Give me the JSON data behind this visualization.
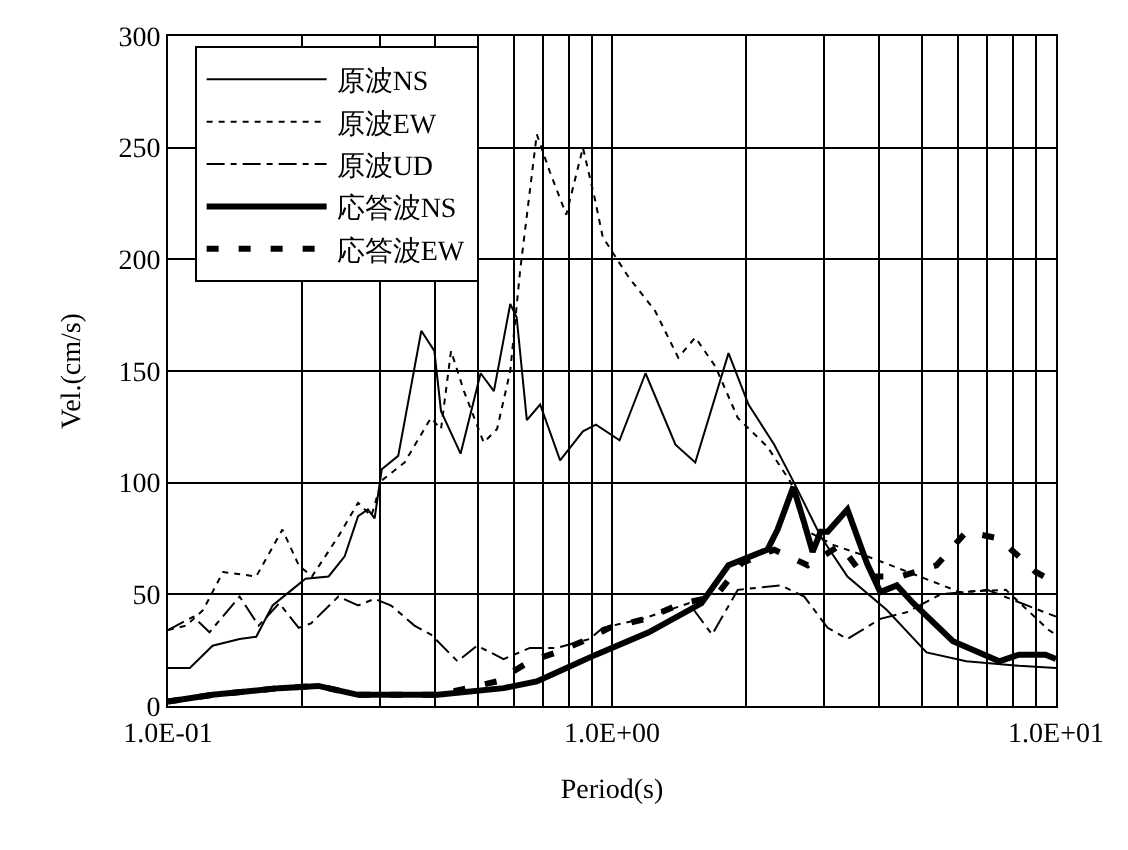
{
  "chart_data": {
    "type": "line",
    "xlabel": "Period(s)",
    "ylabel": "Vel.(cm/s)",
    "log": "x",
    "grid": true,
    "legend": "top left",
    "marker": "none",
    "xlim": [
      0.1,
      10
    ],
    "xticks": [
      {
        "value": 0.1,
        "label": "1.0E-01"
      },
      {
        "value": 1,
        "label": "1.0E+00"
      },
      {
        "value": 10,
        "label": "1.0E+01"
      }
    ],
    "ylim": [
      0,
      300
    ],
    "yticks": [
      0,
      50,
      100,
      150,
      200,
      250,
      300
    ],
    "series": [
      {
        "name": "原波NS",
        "color": "#000000",
        "line_style": "solid",
        "x": [
          0.1,
          0.112,
          0.126,
          0.145,
          0.158,
          0.172,
          0.19,
          0.204,
          0.23,
          0.25,
          0.268,
          0.282,
          0.292,
          0.303,
          0.33,
          0.372,
          0.398,
          0.412,
          0.456,
          0.506,
          0.542,
          0.59,
          0.61,
          0.643,
          0.689,
          0.764,
          0.86,
          0.92,
          1.04,
          1.19,
          1.39,
          1.54,
          1.83,
          2.03,
          2.32,
          2.57,
          2.95,
          3.39,
          4.16,
          5.11,
          6.28,
          8.26,
          10
        ],
        "values": [
          17,
          17,
          27,
          30,
          31,
          45,
          52,
          57,
          58,
          67,
          85,
          88,
          84,
          106,
          112,
          168,
          159,
          132,
          113,
          149,
          141,
          180,
          174,
          128,
          135,
          110,
          123,
          126,
          119,
          149,
          117,
          109,
          158,
          135,
          117,
          100,
          76,
          58,
          43,
          24,
          20,
          18,
          17
        ]
      },
      {
        "name": "原波EW",
        "color": "#000000",
        "line_style": "dotted",
        "x": [
          0.1,
          0.11,
          0.12,
          0.133,
          0.158,
          0.181,
          0.197,
          0.211,
          0.242,
          0.268,
          0.287,
          0.303,
          0.341,
          0.391,
          0.412,
          0.434,
          0.464,
          0.514,
          0.551,
          0.59,
          0.621,
          0.677,
          0.725,
          0.789,
          0.86,
          0.915,
          0.953,
          1.09,
          1.25,
          1.41,
          1.54,
          1.71,
          1.92,
          2.24,
          2.53,
          2.71,
          3.16,
          3.88,
          4.93,
          6.07,
          7.71,
          9.63,
          10
        ],
        "values": [
          34,
          36,
          43,
          60,
          58,
          79,
          63,
          58,
          76,
          91,
          85,
          101,
          109,
          129,
          124,
          159,
          141,
          118,
          124,
          150,
          195,
          256,
          239,
          220,
          250,
          227,
          210,
          192,
          177,
          156,
          165,
          152,
          129,
          116,
          100,
          79,
          72,
          66,
          58,
          51,
          52,
          34,
          32
        ]
      },
      {
        "name": "原波UD",
        "color": "#000000",
        "line_style": "dashdot",
        "x": [
          0.1,
          0.114,
          0.124,
          0.145,
          0.16,
          0.178,
          0.197,
          0.21,
          0.242,
          0.268,
          0.292,
          0.318,
          0.359,
          0.391,
          0.449,
          0.497,
          0.57,
          0.653,
          0.75,
          0.89,
          0.953,
          1.17,
          1.49,
          1.68,
          1.92,
          2.4,
          2.71,
          3.06,
          3.39,
          4.02,
          4.61,
          5.5,
          7,
          10
        ],
        "values": [
          34,
          40,
          33,
          49,
          36,
          46,
          35,
          37,
          49,
          45,
          48,
          45,
          36,
          32,
          20,
          27,
          21,
          26,
          26,
          30,
          35,
          39,
          46,
          32,
          52,
          54,
          49,
          35,
          30,
          39,
          42,
          50,
          52,
          40
        ]
      },
      {
        "name": "応答波NS",
        "color": "#000000",
        "line_style": "solid",
        "x": [
          0.1,
          0.126,
          0.178,
          0.218,
          0.268,
          0.405,
          0.57,
          0.677,
          0.75,
          0.92,
          1.21,
          1.59,
          1.83,
          2.24,
          2.36,
          2.56,
          2.71,
          2.83,
          2.95,
          3.06,
          3.39,
          3.75,
          4.02,
          4.38,
          4.77,
          5.86,
          7.45,
          8.26,
          9.47,
          10
        ],
        "values": [
          2,
          5,
          8,
          9,
          5,
          5,
          8,
          11,
          15,
          23,
          33,
          46,
          63,
          70,
          79,
          98,
          82,
          69,
          78,
          78,
          88,
          64,
          51,
          54,
          46,
          29,
          20,
          23,
          23,
          21
        ]
      },
      {
        "name": "応答波EW",
        "color": "#000000",
        "line_style": "dashed",
        "x": [
          0.1,
          0.126,
          0.178,
          0.218,
          0.268,
          0.405,
          0.55,
          0.653,
          0.75,
          0.86,
          0.987,
          1.19,
          1.44,
          1.71,
          1.96,
          2.32,
          2.76,
          3.27,
          3.69,
          4.46,
          5.38,
          6.28,
          7.45,
          9.0,
          10
        ],
        "values": [
          2,
          5,
          8,
          9,
          5,
          5,
          11,
          20,
          24,
          29,
          35,
          39,
          46,
          49,
          64,
          70,
          63,
          72,
          58,
          58,
          63,
          78,
          75,
          60,
          55
        ]
      }
    ]
  }
}
